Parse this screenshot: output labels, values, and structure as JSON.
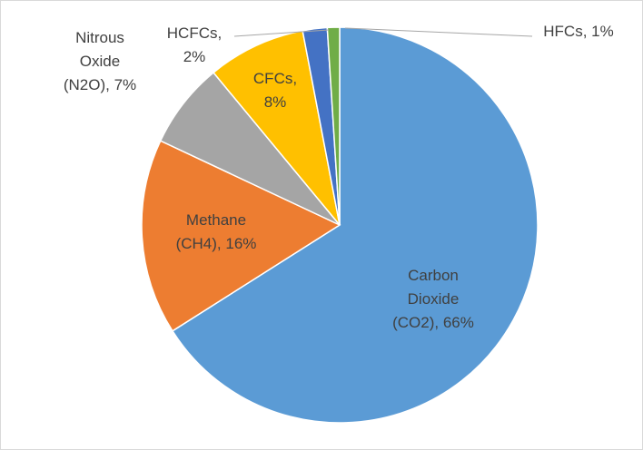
{
  "chart_data": {
    "type": "pie",
    "categories": [
      "Carbon Dioxide (CO2)",
      "Methane (CH4)",
      "Nitrous Oxide (N2O)",
      "CFCs",
      "HCFCs",
      "HFCs"
    ],
    "values": [
      66,
      16,
      7,
      8,
      2,
      1
    ],
    "value_labels": [
      "66%",
      "16%",
      "7%",
      "8%",
      "2%",
      "1%"
    ],
    "colors": [
      "#5b9bd5",
      "#ed7d31",
      "#a5a5a5",
      "#ffc000",
      "#4472c4",
      "#70ad47"
    ]
  }
}
